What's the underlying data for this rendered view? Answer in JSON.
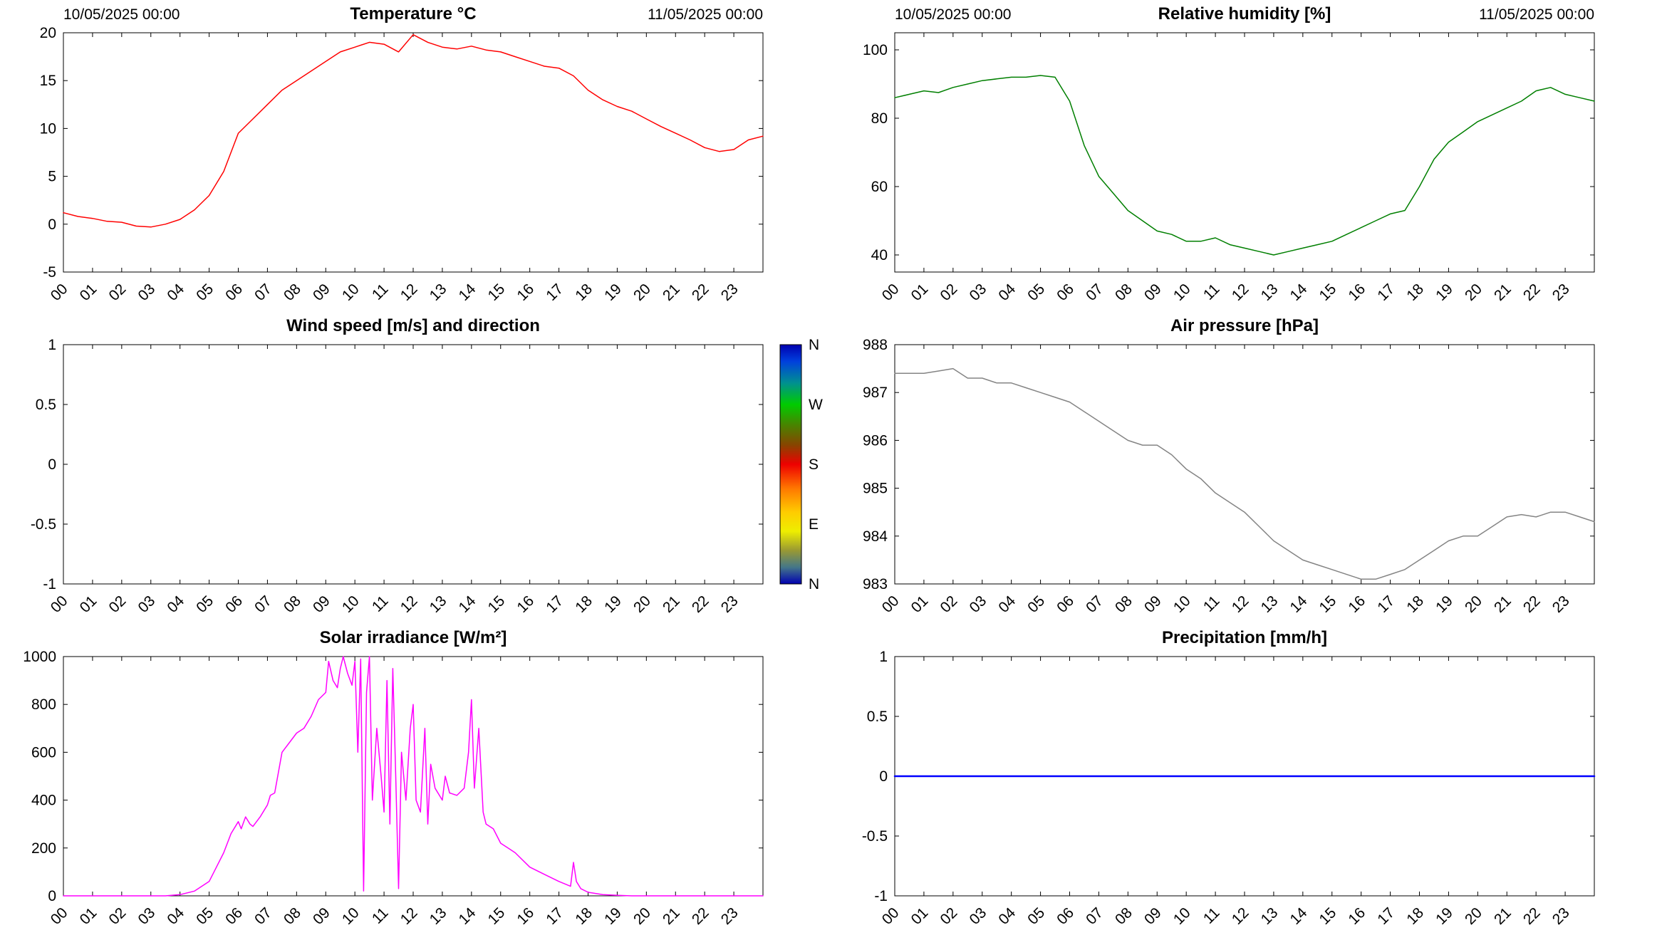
{
  "figure": {
    "background": "#ffffff",
    "date_start": "10/05/2025 00:00",
    "date_end": "11/05/2025 00:00"
  },
  "chart_data": [
    {
      "id": "temperature",
      "type": "line",
      "title": "Temperature °C",
      "annotation_left": "10/05/2025 00:00",
      "annotation_right": "11/05/2025 00:00",
      "line_color": "#ff0000",
      "line_width": 1.5,
      "grid": false,
      "legend": null,
      "xlim": [
        0,
        24
      ],
      "ylim": [
        -5,
        20
      ],
      "yticks": [
        -5,
        0,
        5,
        10,
        15,
        20
      ],
      "ytick_labels": [
        "-5",
        "0",
        "5",
        "10",
        "15",
        "20"
      ],
      "xtick_labels": [
        "00",
        "01",
        "02",
        "03",
        "04",
        "05",
        "06",
        "07",
        "08",
        "09",
        "10",
        "11",
        "12",
        "13",
        "14",
        "15",
        "16",
        "17",
        "18",
        "19",
        "20",
        "21",
        "22",
        "23"
      ],
      "x": [
        0,
        0.5,
        1,
        1.5,
        2,
        2.5,
        3,
        3.5,
        4,
        4.5,
        5,
        5.5,
        6,
        6.5,
        7,
        7.5,
        8,
        8.5,
        9,
        9.5,
        10,
        10.5,
        11,
        11.5,
        12,
        12.5,
        13,
        13.5,
        14,
        14.5,
        15,
        15.5,
        16,
        16.5,
        17,
        17.5,
        18,
        18.5,
        19,
        19.5,
        20,
        20.5,
        21,
        21.5,
        22,
        22.5,
        23,
        23.5,
        24
      ],
      "y": [
        1.2,
        0.8,
        0.6,
        0.3,
        0.2,
        -0.2,
        -0.3,
        0,
        0.5,
        1.5,
        3,
        5.5,
        9.5,
        11,
        12.5,
        14,
        15,
        16,
        17,
        18,
        18.5,
        19,
        18.8,
        18,
        19.8,
        19,
        18.5,
        18.3,
        18.6,
        18.2,
        18,
        17.5,
        17,
        16.5,
        16.3,
        15.5,
        14,
        13,
        12.3,
        11.8,
        11,
        10.2,
        9.5,
        8.8,
        8,
        7.6,
        7.8,
        8.8,
        9.2
      ]
    },
    {
      "id": "humidity",
      "type": "line",
      "title": "Relative humidity [%]",
      "annotation_left": "10/05/2025 00:00",
      "annotation_right": "11/05/2025 00:00",
      "line_color": "#007f00",
      "line_width": 1.5,
      "grid": false,
      "legend": null,
      "xlim": [
        0,
        24
      ],
      "ylim": [
        35,
        105
      ],
      "yticks": [
        40,
        60,
        80,
        100
      ],
      "ytick_labels": [
        "40",
        "60",
        "80",
        "100"
      ],
      "xtick_labels": [
        "00",
        "01",
        "02",
        "03",
        "04",
        "05",
        "06",
        "07",
        "08",
        "09",
        "10",
        "11",
        "12",
        "13",
        "14",
        "15",
        "16",
        "17",
        "18",
        "19",
        "20",
        "21",
        "22",
        "23"
      ],
      "x": [
        0,
        0.5,
        1,
        1.5,
        2,
        2.5,
        3,
        3.5,
        4,
        4.5,
        5,
        5.5,
        6,
        6.5,
        7,
        7.5,
        8,
        8.5,
        9,
        9.5,
        10,
        10.5,
        11,
        11.5,
        12,
        12.5,
        13,
        13.5,
        14,
        14.5,
        15,
        15.5,
        16,
        16.5,
        17,
        17.5,
        18,
        18.5,
        19,
        19.5,
        20,
        20.5,
        21,
        21.5,
        22,
        22.5,
        23,
        23.5,
        24
      ],
      "y": [
        86,
        87,
        88,
        87.5,
        89,
        90,
        91,
        91.5,
        92,
        92,
        92.5,
        92,
        85,
        72,
        63,
        58,
        53,
        50,
        47,
        46,
        44,
        44,
        45,
        43,
        42,
        41,
        40,
        41,
        42,
        43,
        44,
        46,
        48,
        50,
        52,
        53,
        60,
        68,
        73,
        76,
        79,
        81,
        83,
        85,
        88,
        89,
        87,
        86,
        85
      ]
    },
    {
      "id": "wind",
      "type": "line",
      "title": "Wind speed [m/s] and direction",
      "annotation_left": null,
      "annotation_right": null,
      "line_color": "#0000ff",
      "line_width": 1.5,
      "grid": false,
      "legend": null,
      "xlim": [
        0,
        24
      ],
      "ylim": [
        -1,
        1
      ],
      "yticks": [
        -1,
        -0.5,
        0,
        0.5,
        1
      ],
      "ytick_labels": [
        "-1",
        "-0.5",
        "0",
        "0.5",
        "1"
      ],
      "xtick_labels": [
        "00",
        "01",
        "02",
        "03",
        "04",
        "05",
        "06",
        "07",
        "08",
        "09",
        "10",
        "11",
        "12",
        "13",
        "14",
        "15",
        "16",
        "17",
        "18",
        "19",
        "20",
        "21",
        "22",
        "23"
      ],
      "x": [],
      "y": [],
      "colorbar": {
        "labels": [
          "N",
          "W",
          "S",
          "E",
          "N"
        ],
        "stops": [
          [
            0,
            "#0000b0"
          ],
          [
            0.07,
            "#0040dd"
          ],
          [
            0.16,
            "#009090"
          ],
          [
            0.25,
            "#00cc00"
          ],
          [
            0.33,
            "#448800"
          ],
          [
            0.42,
            "#884400"
          ],
          [
            0.5,
            "#ee0000"
          ],
          [
            0.6,
            "#ff7700"
          ],
          [
            0.7,
            "#ffcc00"
          ],
          [
            0.78,
            "#eeee00"
          ],
          [
            0.86,
            "#999933"
          ],
          [
            0.93,
            "#447788"
          ],
          [
            1,
            "#0000b0"
          ]
        ]
      }
    },
    {
      "id": "pressure",
      "type": "line",
      "title": "Air pressure [hPa]",
      "annotation_left": null,
      "annotation_right": null,
      "line_color": "#848484",
      "line_width": 1.5,
      "grid": false,
      "legend": null,
      "xlim": [
        0,
        24
      ],
      "ylim": [
        983,
        988
      ],
      "yticks": [
        983,
        984,
        985,
        986,
        987,
        988
      ],
      "ytick_labels": [
        "983",
        "984",
        "985",
        "986",
        "987",
        "988"
      ],
      "xtick_labels": [
        "00",
        "01",
        "02",
        "03",
        "04",
        "05",
        "06",
        "07",
        "08",
        "09",
        "10",
        "11",
        "12",
        "13",
        "14",
        "15",
        "16",
        "17",
        "18",
        "19",
        "20",
        "21",
        "22",
        "23"
      ],
      "x": [
        0,
        0.5,
        1,
        1.5,
        2,
        2.5,
        3,
        3.5,
        4,
        4.5,
        5,
        5.5,
        6,
        6.5,
        7,
        7.5,
        8,
        8.5,
        9,
        9.5,
        10,
        10.5,
        11,
        11.5,
        12,
        12.5,
        13,
        13.5,
        14,
        14.5,
        15,
        15.5,
        16,
        16.5,
        17,
        17.5,
        18,
        18.5,
        19,
        19.5,
        20,
        20.5,
        21,
        21.5,
        22,
        22.5,
        23,
        23.5,
        24
      ],
      "y": [
        987.4,
        987.4,
        987.4,
        987.45,
        987.5,
        987.3,
        987.3,
        987.2,
        987.2,
        987.1,
        987.0,
        986.9,
        986.8,
        986.6,
        986.4,
        986.2,
        986.0,
        985.9,
        985.9,
        985.7,
        985.4,
        985.2,
        984.9,
        984.7,
        984.5,
        984.2,
        983.9,
        983.7,
        983.5,
        983.4,
        983.3,
        983.2,
        983.1,
        983.1,
        983.2,
        983.3,
        983.5,
        983.7,
        983.9,
        984.0,
        984.0,
        984.2,
        984.4,
        984.45,
        984.4,
        984.5,
        984.5,
        984.4,
        984.3
      ]
    },
    {
      "id": "solar",
      "type": "line",
      "title": "Solar irradiance [W/m²]",
      "annotation_left": null,
      "annotation_right": null,
      "line_color": "#ff00ff",
      "line_width": 1.5,
      "grid": false,
      "legend": null,
      "xlim": [
        0,
        24
      ],
      "ylim": [
        0,
        1000
      ],
      "yticks": [
        0,
        200,
        400,
        600,
        800,
        1000
      ],
      "ytick_labels": [
        "0",
        "200",
        "400",
        "600",
        "800",
        "1000"
      ],
      "xtick_labels": [
        "00",
        "01",
        "02",
        "03",
        "04",
        "05",
        "06",
        "07",
        "08",
        "09",
        "10",
        "11",
        "12",
        "13",
        "14",
        "15",
        "16",
        "17",
        "18",
        "19",
        "20",
        "21",
        "22",
        "23"
      ],
      "x": [
        0,
        3.5,
        4,
        4.5,
        5,
        5.25,
        5.5,
        5.75,
        6,
        6.1,
        6.25,
        6.4,
        6.5,
        6.75,
        7,
        7.1,
        7.25,
        7.5,
        7.75,
        8,
        8.25,
        8.5,
        8.75,
        9,
        9.1,
        9.25,
        9.4,
        9.5,
        9.6,
        9.75,
        9.9,
        10,
        10.1,
        10.2,
        10.3,
        10.4,
        10.5,
        10.6,
        10.75,
        10.9,
        11,
        11.1,
        11.2,
        11.3,
        11.4,
        11.5,
        11.6,
        11.75,
        11.9,
        12,
        12.1,
        12.25,
        12.4,
        12.5,
        12.6,
        12.75,
        13,
        13.1,
        13.25,
        13.5,
        13.75,
        13.9,
        14,
        14.1,
        14.25,
        14.4,
        14.5,
        14.75,
        15,
        15.25,
        15.5,
        16,
        16.5,
        17,
        17.2,
        17.4,
        17.5,
        17.6,
        17.75,
        18,
        18.5,
        19,
        19.5,
        24
      ],
      "y": [
        0,
        0,
        5,
        20,
        60,
        120,
        180,
        260,
        310,
        280,
        330,
        300,
        290,
        330,
        380,
        420,
        430,
        600,
        640,
        680,
        700,
        750,
        820,
        850,
        980,
        900,
        870,
        950,
        1000,
        930,
        880,
        980,
        600,
        990,
        20,
        850,
        1000,
        400,
        700,
        500,
        350,
        900,
        300,
        950,
        500,
        30,
        600,
        400,
        700,
        800,
        400,
        350,
        700,
        300,
        550,
        450,
        400,
        500,
        430,
        420,
        450,
        600,
        820,
        450,
        700,
        350,
        300,
        280,
        220,
        200,
        180,
        120,
        90,
        60,
        50,
        40,
        140,
        60,
        30,
        15,
        5,
        2,
        0,
        0
      ]
    },
    {
      "id": "precipitation",
      "type": "line",
      "title": "Precipitation [mm/h]",
      "annotation_left": null,
      "annotation_right": null,
      "line_color": "#0000ff",
      "line_width": 2.5,
      "grid": false,
      "legend": null,
      "xlim": [
        0,
        24
      ],
      "ylim": [
        -1,
        1
      ],
      "yticks": [
        -1,
        -0.5,
        0,
        0.5,
        1
      ],
      "ytick_labels": [
        "-1",
        "-0.5",
        "0",
        "0.5",
        "1"
      ],
      "xtick_labels": [
        "00",
        "01",
        "02",
        "03",
        "04",
        "05",
        "06",
        "07",
        "08",
        "09",
        "10",
        "11",
        "12",
        "13",
        "14",
        "15",
        "16",
        "17",
        "18",
        "19",
        "20",
        "21",
        "22",
        "23"
      ],
      "x": [
        0,
        24
      ],
      "y": [
        0,
        0
      ]
    }
  ]
}
